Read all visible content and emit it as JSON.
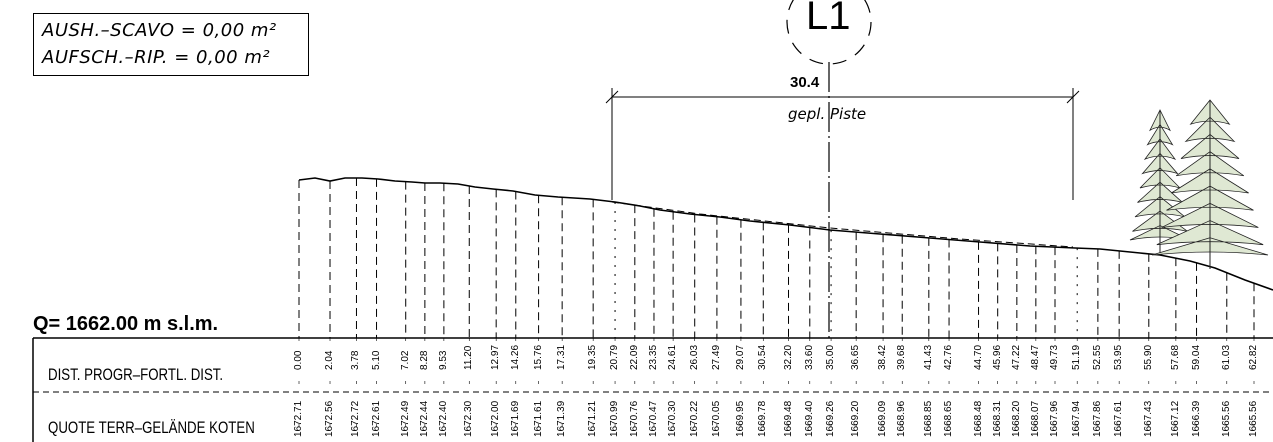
{
  "area_box": {
    "line1": "AUSH.–SCAVO  =  0,00  m²",
    "line2": "AUFSCH.–RIP.  =  0,00  m²"
  },
  "section_label": "L1",
  "piste": {
    "width": "30.4",
    "label": "gepl. Piste"
  },
  "reference_level": "Q=  1662.00  m  s.l.m.",
  "table": {
    "dist_label": "DIST. PROGR–FORTL. DIST.",
    "elev_label": "QUOTE  TERR–GELÄNDE  KOTEN",
    "distances": [
      "0.00",
      "2.04",
      "3.78",
      "5.10",
      "7.02",
      "8.28",
      "9.53",
      "11.20",
      "12.97",
      "14.26",
      "15.76",
      "17.31",
      "19.35",
      "20.79",
      "22.09",
      "23.35",
      "24.61",
      "26.03",
      "27.49",
      "29.07",
      "30.54",
      "32.20",
      "33.60",
      "35.00",
      "36.65",
      "38.42",
      "39.68",
      "41.43",
      "42.76",
      "44.70",
      "45.96",
      "47.22",
      "48.47",
      "49.73",
      "51.19",
      "52.55",
      "53.95",
      "55.90",
      "57.68",
      "59.04",
      "61.03",
      "62.82"
    ],
    "elevations": [
      "1672.71",
      "1672.56",
      "1672.72",
      "1672.61",
      "1672.49",
      "1672.44",
      "1672.40",
      "1672.30",
      "1672.00",
      "1671.69",
      "1671.61",
      "1671.39",
      "1671.21",
      "1670.99",
      "1670.76",
      "1670.47",
      "1670.30",
      "1670.22",
      "1670.05",
      "1669.95",
      "1669.78",
      "1669.48",
      "1669.40",
      "1669.26",
      "1669.20",
      "1669.09",
      "1668.96",
      "1668.85",
      "1668.65",
      "1668.48",
      "1668.31",
      "1668.20",
      "1668.07",
      "1667.96",
      "1667.94",
      "1667.86",
      "1667.61",
      "1667.43",
      "1667.12",
      "1666.39",
      "1665.56",
      "1665.56"
    ]
  },
  "colors": {
    "line": "#000000",
    "tree_fill": "#dfe8d3",
    "background": "#ffffff"
  }
}
